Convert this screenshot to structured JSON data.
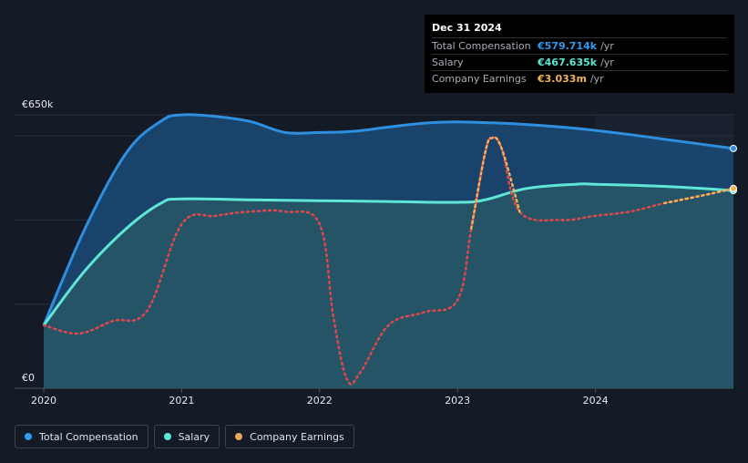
{
  "chart_data": {
    "type": "line",
    "title": "",
    "x_ticks": [
      "2020",
      "2021",
      "2022",
      "2023",
      "2024"
    ],
    "xlim": [
      2020.0,
      2025.0
    ],
    "ylim": [
      0,
      650
    ],
    "y_tick_labels": [
      {
        "value": 650,
        "label": "€650k"
      },
      {
        "value": 0,
        "label": "€0"
      }
    ],
    "series": [
      {
        "name": "Total Compensation",
        "color": "#2e8fe0",
        "style": "solid-area",
        "x": [
          2020.0,
          2020.3,
          2020.6,
          2020.85,
          2021.0,
          2021.25,
          2021.5,
          2021.75,
          2022.0,
          2022.25,
          2022.5,
          2022.75,
          2023.0,
          2023.25,
          2023.5,
          2023.75,
          2024.0,
          2024.25,
          2024.5,
          2024.75,
          2025.0
        ],
        "values": [
          150,
          380,
          560,
          635,
          650,
          646,
          634,
          608,
          608,
          611,
          621,
          630,
          633,
          631,
          627,
          621,
          613,
          603,
          592,
          581,
          570
        ]
      },
      {
        "name": "Salary",
        "color": "#5ee6d7",
        "style": "solid-area",
        "x": [
          2020.0,
          2020.3,
          2020.6,
          2020.85,
          2021.0,
          2021.5,
          2022.0,
          2022.5,
          2023.0,
          2023.2,
          2023.5,
          2023.85,
          2024.0,
          2024.5,
          2025.0
        ],
        "values": [
          150,
          280,
          380,
          440,
          450,
          448,
          446,
          444,
          442,
          448,
          475,
          485,
          485,
          480,
          470
        ]
      },
      {
        "name": "Company Earnings",
        "color": "#e0474c",
        "style": "dotted",
        "x": [
          2020.0,
          2020.25,
          2020.5,
          2020.75,
          2021.0,
          2021.25,
          2021.5,
          2021.75,
          2022.0,
          2022.1,
          2022.2,
          2022.3,
          2022.5,
          2022.75,
          2023.0,
          2023.1,
          2023.2,
          2023.25,
          2023.32,
          2023.45,
          2023.75,
          2024.0,
          2024.25,
          2024.5,
          2024.8,
          2025.0
        ],
        "values": [
          150,
          130,
          160,
          185,
          390,
          410,
          420,
          420,
          390,
          170,
          20,
          40,
          150,
          180,
          210,
          380,
          560,
          595,
          570,
          420,
          400,
          410,
          420,
          440,
          460,
          475
        ]
      }
    ]
  },
  "tooltip": {
    "date": "Dec 31 2024",
    "rows": [
      {
        "label": "Total Compensation",
        "value": "€579.714k",
        "unit": "/yr",
        "color": "#2e9cf0"
      },
      {
        "label": "Salary",
        "value": "€467.635k",
        "unit": "/yr",
        "color": "#5ee6d7"
      },
      {
        "label": "Company Earnings",
        "value": "€3.033m",
        "unit": "/yr",
        "color": "#f0b45a"
      }
    ]
  },
  "legend": [
    {
      "label": "Total Compensation",
      "color": "#2e9cf0"
    },
    {
      "label": "Salary",
      "color": "#5ee6d7"
    },
    {
      "label": "Company Earnings",
      "color": "#e8a85a"
    }
  ]
}
